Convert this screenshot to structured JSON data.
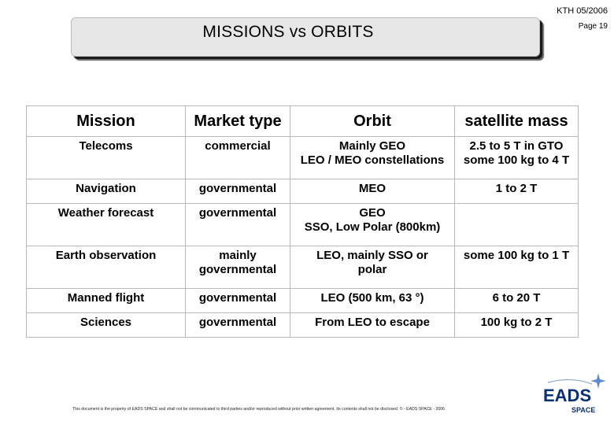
{
  "header": {
    "date": "KTH 05/2006",
    "page": "Page 19"
  },
  "title": "MISSIONS vs ORBITS",
  "table": {
    "headers": [
      "Mission",
      "Market type",
      "Orbit",
      "satellite mass"
    ],
    "rows": [
      [
        "Telecoms",
        "commercial",
        "Mainly GEO\nLEO / MEO constellations",
        "2.5 to 5 T in GTO\nsome 100 kg to 4 T"
      ],
      [
        "Navigation",
        "governmental",
        "MEO",
        "1 to 2 T"
      ],
      [
        "Weather forecast",
        "governmental",
        "GEO\nSSO, Low Polar (800km)",
        ""
      ],
      [
        "Earth observation",
        "mainly\ngovernmental",
        "LEO, mainly SSO or\npolar",
        "some 100 kg to 1 T"
      ],
      [
        "Manned flight",
        "governmental",
        "LEO (500 km, 63 °)",
        "6 to 20 T"
      ],
      [
        "Sciences",
        "governmental",
        "From LEO to escape",
        "100 kg to 2 T"
      ]
    ]
  },
  "footer": "This document is the property of EADS SPACE and shall not be communicated to third parties and/or reproduced without prior written agreement. Its contents shall not be disclosed. © - EADS SPACE - 2006",
  "logo": {
    "main": "EADS",
    "sub": "SPACE",
    "color": "#0a2f74",
    "star_color": "#5a8ccc"
  }
}
